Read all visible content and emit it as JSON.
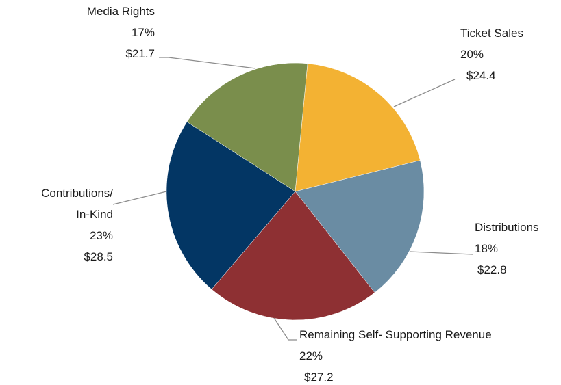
{
  "chart_data": {
    "type": "pie",
    "title": "",
    "slices": [
      {
        "name": "Ticket Sales",
        "name_lines": [
          "Ticket Sales"
        ],
        "percent_label": "20%",
        "value": 24.4,
        "value_label": "$24.4",
        "color": "#F3B233"
      },
      {
        "name": "Distributions",
        "name_lines": [
          "Distributions"
        ],
        "percent_label": "18%",
        "value": 22.8,
        "value_label": "$22.8",
        "color": "#6A8CA3"
      },
      {
        "name": "Remaining Self- Supporting Revenue",
        "name_lines": [
          "Remaining Self- Supporting Revenue"
        ],
        "percent_label": "22%",
        "value": 27.2,
        "value_label": "$27.2",
        "color": "#8E3033"
      },
      {
        "name": "Contributions/ In-Kind",
        "name_lines": [
          "Contributions/",
          "In-Kind"
        ],
        "percent_label": "23%",
        "value": 28.5,
        "value_label": "$28.5",
        "color": "#033664"
      },
      {
        "name": "Media Rights",
        "name_lines": [
          "Media Rights"
        ],
        "percent_label": "17%",
        "value": 21.7,
        "value_label": "$21.7",
        "color": "#7A8E4C"
      }
    ],
    "start_direction": "top, clockwise"
  }
}
